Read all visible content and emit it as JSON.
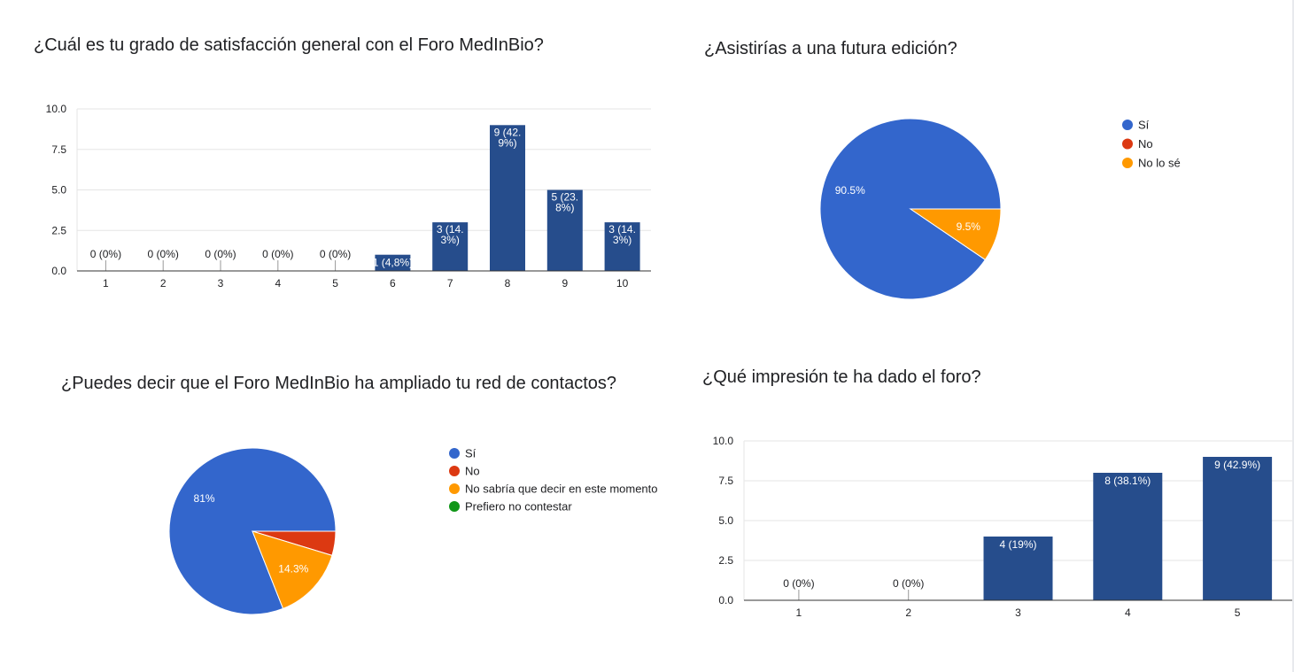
{
  "colors": {
    "bar": "#264d8c",
    "si": "#3366cc",
    "no": "#dc3912",
    "nolose": "#ff9900",
    "prefiero": "#109618",
    "grid": "#e5e5e5",
    "axis": "#333333",
    "text": "#202124"
  },
  "chart_data": [
    {
      "id": "satisfaccion",
      "type": "bar",
      "title": "¿Cuál es tu grado de satisfacción general con el Foro MedInBio?",
      "categories": [
        "1",
        "2",
        "3",
        "4",
        "5",
        "6",
        "7",
        "8",
        "9",
        "10"
      ],
      "values": [
        0,
        0,
        0,
        0,
        0,
        1,
        3,
        9,
        5,
        3
      ],
      "labels": [
        "0 (0%)",
        "0 (0%)",
        "0 (0%)",
        "0 (0%)",
        "0 (0%)",
        "1 (4,8%)",
        "3 (14.|3%)",
        "9 (42.|9%)",
        "5 (23.|8%)",
        "3 (14.|3%)"
      ],
      "yticks": [
        "0.0",
        "2.5",
        "5.0",
        "7.5",
        "10.0"
      ],
      "ylim": [
        0,
        10
      ],
      "grid": true
    },
    {
      "id": "asistirias",
      "type": "pie",
      "title": "¿Asistirías a una futura edición?",
      "slices": [
        {
          "name": "Sí",
          "value": 90.5,
          "label": "90.5%"
        },
        {
          "name": "No",
          "value": 0,
          "label": ""
        },
        {
          "name": "No lo sé",
          "value": 9.5,
          "label": "9.5%"
        }
      ],
      "legend": "right"
    },
    {
      "id": "contactos",
      "type": "pie",
      "title": "¿Puedes decir que el Foro MedInBio ha ampliado tu red de contactos?",
      "slices": [
        {
          "name": "Sí",
          "value": 81,
          "label": "81%"
        },
        {
          "name": "No",
          "value": 4.7,
          "label": ""
        },
        {
          "name": "No sabría que decir en este momento",
          "value": 14.3,
          "label": "14.3%"
        },
        {
          "name": "Prefiero no contestar",
          "value": 0,
          "label": ""
        }
      ],
      "legend": "right"
    },
    {
      "id": "impresion",
      "type": "bar",
      "title": "¿Qué impresión te ha dado el foro?",
      "categories": [
        "1",
        "2",
        "3",
        "4",
        "5"
      ],
      "values": [
        0,
        0,
        4,
        8,
        9
      ],
      "labels": [
        "0 (0%)",
        "0 (0%)",
        "4 (19%)",
        "8 (38.1%)",
        "9 (42.9%)"
      ],
      "yticks": [
        "0.0",
        "2.5",
        "5.0",
        "7.5",
        "10.0"
      ],
      "ylim": [
        0,
        10
      ],
      "grid": true
    }
  ]
}
